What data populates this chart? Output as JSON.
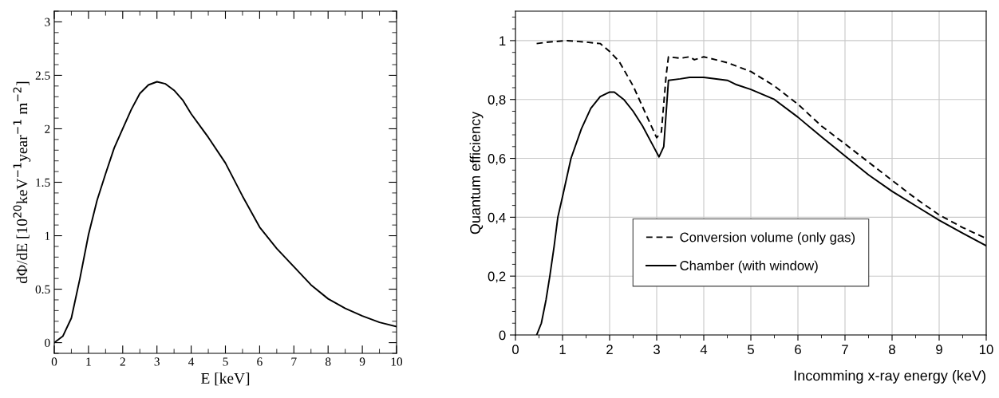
{
  "chart_data": [
    {
      "type": "line",
      "xlabel": "E [keV]",
      "ylabel": "dΦ/dE [10$^{20}$keV$^{−1}$year$^{−1}$ m$^{−2}$]",
      "xlim": [
        0,
        10
      ],
      "ylim": [
        -0.1,
        3.1
      ],
      "xticks": [
        0,
        1,
        2,
        3,
        4,
        5,
        6,
        7,
        8,
        9,
        10
      ],
      "yticks": [
        0,
        0.5,
        1,
        1.5,
        2,
        2.5,
        3
      ],
      "grid": false,
      "legend": false,
      "series": [
        {
          "color": "#000000",
          "line_style": "solid",
          "x": [
            0,
            0.25,
            0.5,
            0.75,
            1,
            1.25,
            1.5,
            1.75,
            2,
            2.25,
            2.5,
            2.75,
            3,
            3.25,
            3.5,
            3.75,
            4,
            4.5,
            5,
            5.5,
            6,
            6.5,
            7,
            7.5,
            8,
            8.5,
            9,
            9.5,
            10
          ],
          "values": [
            0,
            0.06,
            0.23,
            0.6,
            1.01,
            1.33,
            1.58,
            1.82,
            2.0,
            2.18,
            2.33,
            2.41,
            2.44,
            2.42,
            2.36,
            2.27,
            2.14,
            1.92,
            1.68,
            1.37,
            1.08,
            0.88,
            0.71,
            0.54,
            0.41,
            0.32,
            0.25,
            0.19,
            0.15
          ]
        }
      ]
    },
    {
      "type": "line",
      "xlabel": "Incomming x-ray energy (keV)",
      "ylabel": "Quantum efficiency",
      "xlim": [
        0,
        10
      ],
      "ylim": [
        0,
        1.1
      ],
      "xticks": [
        0,
        1,
        2,
        3,
        4,
        5,
        6,
        7,
        8,
        9,
        10
      ],
      "yticks": [
        0,
        {
          "value": 0.2,
          "label": "0,2"
        },
        {
          "value": 0.4,
          "label": "0,4"
        },
        {
          "value": 0.6,
          "label": "0,6"
        },
        {
          "value": 0.8,
          "label": "0,8"
        },
        1
      ],
      "grid": true,
      "legend": "bottom",
      "series": [
        {
          "name": "Conversion volume (only gas)",
          "color": "#000000",
          "line_style": "dashed",
          "x": [
            0.45,
            0.7,
            1.1,
            1.5,
            1.8,
            2.0,
            2.2,
            2.5,
            2.8,
            3.0,
            3.1,
            3.2,
            3.25,
            3.5,
            3.7,
            3.8,
            4.0,
            4.5,
            5.0,
            5.5,
            6.0,
            6.5,
            7.0,
            7.5,
            8.0,
            8.5,
            9.0,
            9.5,
            10
          ],
          "values": [
            0.99,
            0.995,
            1.0,
            0.995,
            0.99,
            0.963,
            0.93,
            0.846,
            0.74,
            0.67,
            0.69,
            0.88,
            0.945,
            0.94,
            0.945,
            0.935,
            0.945,
            0.925,
            0.895,
            0.846,
            0.784,
            0.71,
            0.649,
            0.587,
            0.525,
            0.464,
            0.408,
            0.365,
            0.328
          ]
        },
        {
          "name": "Chamber (with window)",
          "color": "#000000",
          "line_style": "solid",
          "x": [
            0.45,
            0.55,
            0.65,
            0.73,
            0.82,
            0.9,
            1.0,
            1.18,
            1.4,
            1.6,
            1.8,
            2.0,
            2.1,
            2.3,
            2.5,
            2.7,
            2.9,
            3.05,
            3.15,
            3.25,
            3.5,
            3.7,
            4.0,
            4.5,
            4.7,
            5.0,
            5.5,
            6.0,
            6.5,
            7.0,
            7.5,
            8.0,
            8.5,
            9.0,
            9.5,
            10
          ],
          "values": [
            0,
            0.04,
            0.12,
            0.2,
            0.3,
            0.4,
            0.47,
            0.6,
            0.7,
            0.77,
            0.81,
            0.825,
            0.825,
            0.8,
            0.76,
            0.71,
            0.65,
            0.605,
            0.64,
            0.865,
            0.87,
            0.875,
            0.875,
            0.865,
            0.85,
            0.834,
            0.8,
            0.74,
            0.673,
            0.608,
            0.544,
            0.488,
            0.439,
            0.39,
            0.346,
            0.303
          ]
        }
      ]
    }
  ]
}
